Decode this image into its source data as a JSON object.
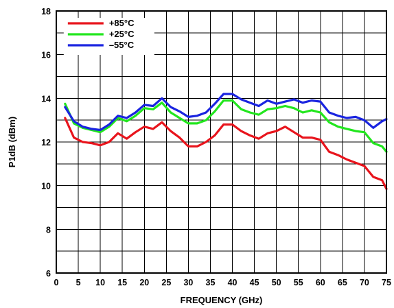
{
  "chart_data": {
    "type": "line",
    "xlabel": "FREQUENCY (GHz)",
    "ylabel": "P1dB (dBm)",
    "xlim": [
      0,
      75
    ],
    "ylim": [
      6,
      18
    ],
    "x_ticks": [
      0,
      5,
      10,
      15,
      20,
      25,
      30,
      35,
      40,
      45,
      50,
      55,
      60,
      65,
      70,
      75
    ],
    "y_ticks": [
      6,
      8,
      10,
      12,
      14,
      16,
      18
    ],
    "grid": true,
    "legend_position": "top-left",
    "series": [
      {
        "name": "+85°C",
        "color": "#e8141c",
        "x": [
          2,
          4,
          6,
          8,
          10,
          12,
          14,
          16,
          18,
          20,
          22,
          24,
          26,
          28,
          30,
          32,
          34,
          36,
          38,
          40,
          42,
          44,
          46,
          48,
          50,
          52,
          54,
          56,
          58,
          60,
          62,
          64,
          66,
          68,
          70,
          72,
          74,
          75
        ],
        "values": [
          13.1,
          12.2,
          12.0,
          11.95,
          11.85,
          12.0,
          12.4,
          12.15,
          12.45,
          12.7,
          12.6,
          12.9,
          12.5,
          12.2,
          11.8,
          11.8,
          12.0,
          12.3,
          12.8,
          12.8,
          12.5,
          12.3,
          12.15,
          12.4,
          12.5,
          12.7,
          12.45,
          12.2,
          12.2,
          12.1,
          11.55,
          11.4,
          11.2,
          11.05,
          10.9,
          10.4,
          10.25,
          9.85
        ]
      },
      {
        "name": "+25°C",
        "color": "#22e61e",
        "x": [
          2,
          4,
          6,
          8,
          10,
          12,
          14,
          16,
          18,
          20,
          22,
          24,
          26,
          28,
          30,
          32,
          34,
          36,
          38,
          40,
          42,
          44,
          46,
          48,
          50,
          52,
          54,
          56,
          58,
          60,
          62,
          64,
          66,
          68,
          70,
          72,
          74,
          75
        ],
        "values": [
          13.75,
          12.85,
          12.65,
          12.55,
          12.45,
          12.7,
          13.1,
          12.95,
          13.2,
          13.55,
          13.5,
          13.8,
          13.35,
          13.1,
          12.85,
          12.85,
          13.0,
          13.4,
          13.9,
          13.9,
          13.5,
          13.35,
          13.25,
          13.5,
          13.55,
          13.65,
          13.55,
          13.35,
          13.45,
          13.35,
          12.9,
          12.7,
          12.6,
          12.5,
          12.45,
          11.95,
          11.8,
          11.55
        ]
      },
      {
        "name": "–55°C",
        "color": "#1a24e0",
        "x": [
          2,
          4,
          6,
          8,
          10,
          12,
          14,
          16,
          18,
          20,
          22,
          24,
          26,
          28,
          30,
          32,
          34,
          36,
          38,
          40,
          42,
          44,
          46,
          48,
          50,
          52,
          54,
          56,
          58,
          60,
          62,
          64,
          66,
          68,
          70,
          72,
          74,
          75
        ],
        "values": [
          13.6,
          12.95,
          12.7,
          12.6,
          12.55,
          12.8,
          13.2,
          13.1,
          13.35,
          13.7,
          13.65,
          14.0,
          13.6,
          13.4,
          13.15,
          13.2,
          13.35,
          13.75,
          14.2,
          14.2,
          13.95,
          13.8,
          13.65,
          13.9,
          13.75,
          13.85,
          13.95,
          13.8,
          13.9,
          13.85,
          13.35,
          13.2,
          13.1,
          13.15,
          13.0,
          12.65,
          12.95,
          13.05
        ]
      }
    ]
  }
}
